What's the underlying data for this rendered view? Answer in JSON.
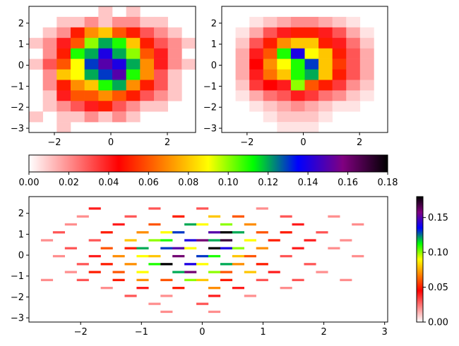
{
  "chart_data": [
    {
      "type": "heatmap",
      "panel": "top-left",
      "x_bins": 12,
      "y_bins": 12,
      "xlim": [
        -2.9,
        3.0
      ],
      "ylim": [
        -3.2,
        2.8
      ],
      "x_ticks": [
        "−2",
        "0",
        "2"
      ],
      "x_tick_values": [
        -2,
        0,
        2
      ],
      "y_ticks": [
        "−3",
        "−2",
        "−1",
        "0",
        "1",
        "2"
      ],
      "y_tick_values": [
        -3,
        -2,
        -1,
        0,
        1,
        2
      ],
      "note": "2D histogram density, gist_heat-like colormap shared with horizontal colorbar (0 to 0.18)",
      "values": [
        [
          0,
          0,
          0,
          0,
          0,
          0.01,
          0,
          0.01,
          0,
          0,
          0,
          0
        ],
        [
          0,
          0,
          0.01,
          0.01,
          0.02,
          0.01,
          0.02,
          0.02,
          0.01,
          0.01,
          0,
          0
        ],
        [
          0,
          0.01,
          0.02,
          0.05,
          0.07,
          0.08,
          0.06,
          0.05,
          0.03,
          0.02,
          0.01,
          0
        ],
        [
          0.01,
          0.02,
          0.04,
          0.06,
          0.1,
          0.12,
          0.11,
          0.08,
          0.05,
          0.03,
          0.02,
          0.01
        ],
        [
          0,
          0.02,
          0.05,
          0.11,
          0.12,
          0.14,
          0.12,
          0.1,
          0.06,
          0.04,
          0.02,
          0
        ],
        [
          0.01,
          0.03,
          0.06,
          0.09,
          0.13,
          0.15,
          0.14,
          0.12,
          0.07,
          0.04,
          0.02,
          0.01
        ],
        [
          0,
          0.02,
          0.08,
          0.09,
          0.12,
          0.13,
          0.15,
          0.11,
          0.07,
          0.03,
          0.01,
          0
        ],
        [
          0,
          0.02,
          0.05,
          0.07,
          0.08,
          0.11,
          0.12,
          0.07,
          0.05,
          0.03,
          0.01,
          0
        ],
        [
          0,
          0.01,
          0.04,
          0.06,
          0.06,
          0.07,
          0.06,
          0.05,
          0.03,
          0.02,
          0.01,
          0
        ],
        [
          0,
          0.01,
          0.02,
          0.03,
          0.04,
          0.05,
          0.03,
          0.02,
          0.01,
          0.01,
          0,
          0
        ],
        [
          0.01,
          0,
          0.01,
          0.01,
          0.02,
          0.01,
          0.02,
          0.01,
          0,
          0,
          0,
          0
        ],
        [
          0,
          0,
          0.01,
          0,
          0,
          0,
          0,
          0,
          0,
          0,
          0,
          0
        ]
      ]
    },
    {
      "type": "heatmap",
      "panel": "top-right",
      "x_bins": 12,
      "y_bins": 12,
      "xlim": [
        -2.9,
        3.0
      ],
      "ylim": [
        -3.2,
        2.8
      ],
      "x_ticks": [
        "−2",
        "0",
        "2"
      ],
      "x_tick_values": [
        -2,
        0,
        2
      ],
      "y_ticks": [
        "−3",
        "−2",
        "−1",
        "0",
        "1",
        "2"
      ],
      "y_tick_values": [
        -3,
        -2,
        -1,
        0,
        1,
        2
      ],
      "note": "Smoothed/interpolated 2D density, shared colormap (0 to 0.18)",
      "values": [
        [
          0,
          0,
          0,
          0,
          0,
          0,
          0,
          0,
          0,
          0,
          0,
          0
        ],
        [
          0,
          0,
          0.005,
          0.01,
          0.015,
          0.02,
          0.02,
          0.015,
          0.01,
          0.005,
          0,
          0
        ],
        [
          0,
          0.005,
          0.015,
          0.03,
          0.04,
          0.05,
          0.05,
          0.04,
          0.03,
          0.015,
          0.005,
          0
        ],
        [
          0,
          0.01,
          0.03,
          0.05,
          0.07,
          0.08,
          0.08,
          0.05,
          0.04,
          0.025,
          0.01,
          0
        ],
        [
          0,
          0.015,
          0.04,
          0.06,
          0.11,
          0.14,
          0.09,
          0.08,
          0.05,
          0.03,
          0.015,
          0
        ],
        [
          0,
          0.015,
          0.045,
          0.07,
          0.09,
          0.11,
          0.13,
          0.08,
          0.055,
          0.03,
          0.015,
          0
        ],
        [
          0,
          0.015,
          0.04,
          0.065,
          0.08,
          0.11,
          0.12,
          0.08,
          0.05,
          0.03,
          0.015,
          0
        ],
        [
          0,
          0.01,
          0.035,
          0.045,
          0.04,
          0.1,
          0.06,
          0.05,
          0.035,
          0.02,
          0.01,
          0
        ],
        [
          0,
          0.005,
          0.015,
          0.025,
          0.03,
          0.04,
          0.035,
          0.025,
          0.02,
          0.01,
          0.005,
          0
        ],
        [
          0,
          0,
          0.005,
          0.01,
          0.015,
          0.02,
          0.015,
          0.01,
          0.005,
          0.005,
          0,
          0
        ],
        [
          0,
          0,
          0,
          0.005,
          0.01,
          0.01,
          0.01,
          0.005,
          0,
          0,
          0,
          0
        ],
        [
          0,
          0,
          0,
          0,
          0.005,
          0.005,
          0.005,
          0,
          0,
          0,
          0,
          0
        ]
      ]
    },
    {
      "type": "colorbar",
      "panel": "horizontal-colorbar",
      "orientation": "horizontal",
      "range": [
        0,
        0.18
      ],
      "tick_labels": [
        "0.00",
        "0.02",
        "0.04",
        "0.06",
        "0.08",
        "0.10",
        "0.12",
        "0.14",
        "0.16",
        "0.18"
      ],
      "tick_values": [
        0,
        0.02,
        0.04,
        0.06,
        0.08,
        0.1,
        0.12,
        0.14,
        0.16,
        0.18
      ]
    },
    {
      "type": "heatmap",
      "panel": "bottom",
      "x_bins": 30,
      "y_bins": 30,
      "xlim": [
        -2.85,
        3.05
      ],
      "ylim": [
        -3.2,
        2.8
      ],
      "x_ticks": [
        "−2",
        "−1",
        "0",
        "1",
        "2",
        "3"
      ],
      "x_tick_values": [
        -2,
        -1,
        0,
        1,
        2,
        3
      ],
      "y_ticks": [
        "−3",
        "−2",
        "−1",
        "0",
        "1",
        "2"
      ],
      "y_tick_values": [
        -3,
        -2,
        -1,
        0,
        1,
        2
      ],
      "note": "Fine-binned 2D histogram (sparse), same data, shared colormap; approximate reconstruction",
      "cells": [
        [
          5,
          1,
          0.04
        ],
        [
          10,
          1,
          0.03
        ],
        [
          14,
          1,
          0.03
        ],
        [
          19,
          1,
          0.02
        ],
        [
          4,
          2,
          0.02
        ],
        [
          8,
          2,
          0.03
        ],
        [
          12,
          2,
          0.05
        ],
        [
          15,
          2,
          0.08
        ],
        [
          17,
          2,
          0.06
        ],
        [
          21,
          2,
          0.03
        ],
        [
          25,
          2,
          0.02
        ],
        [
          3,
          3,
          0.02
        ],
        [
          7,
          3,
          0.04
        ],
        [
          10,
          3,
          0.06
        ],
        [
          13,
          3,
          0.12
        ],
        [
          14,
          3,
          0.09
        ],
        [
          16,
          3,
          0.1
        ],
        [
          18,
          3,
          0.07
        ],
        [
          22,
          3,
          0.04
        ],
        [
          27,
          3,
          0.02
        ],
        [
          2,
          4,
          0.03
        ],
        [
          6,
          4,
          0.05
        ],
        [
          9,
          4,
          0.07
        ],
        [
          11,
          4,
          0.09
        ],
        [
          12,
          4,
          0.13
        ],
        [
          15,
          4,
          0.15
        ],
        [
          16,
          4,
          0.18
        ],
        [
          17,
          4,
          0.12
        ],
        [
          19,
          4,
          0.06
        ],
        [
          21,
          4,
          0.05
        ],
        [
          24,
          4,
          0.03
        ],
        [
          1,
          5,
          0.02
        ],
        [
          5,
          5,
          0.03
        ],
        [
          8,
          5,
          0.08
        ],
        [
          10,
          5,
          0.1
        ],
        [
          11,
          5,
          0.11
        ],
        [
          13,
          5,
          0.14
        ],
        [
          14,
          5,
          0.16
        ],
        [
          15,
          5,
          0.12
        ],
        [
          16,
          5,
          0.17
        ],
        [
          18,
          5,
          0.09
        ],
        [
          20,
          5,
          0.05
        ],
        [
          23,
          5,
          0.04
        ],
        [
          26,
          5,
          0.02
        ],
        [
          3,
          6,
          0.03
        ],
        [
          6,
          6,
          0.06
        ],
        [
          8,
          6,
          0.05
        ],
        [
          9,
          6,
          0.12
        ],
        [
          11,
          6,
          0.13
        ],
        [
          12,
          6,
          0.15
        ],
        [
          13,
          6,
          0.09
        ],
        [
          15,
          6,
          0.18
        ],
        [
          16,
          6,
          0.14
        ],
        [
          17,
          6,
          0.1
        ],
        [
          19,
          6,
          0.07
        ],
        [
          22,
          6,
          0.04
        ],
        [
          25,
          6,
          0.02
        ],
        [
          2,
          7,
          0.02
        ],
        [
          5,
          7,
          0.04
        ],
        [
          7,
          7,
          0.07
        ],
        [
          9,
          7,
          0.09
        ],
        [
          10,
          7,
          0.08
        ],
        [
          12,
          7,
          0.16
        ],
        [
          14,
          7,
          0.13
        ],
        [
          15,
          7,
          0.11
        ],
        [
          17,
          7,
          0.08
        ],
        [
          18,
          7,
          0.06
        ],
        [
          21,
          7,
          0.03
        ],
        [
          27,
          7,
          0.02
        ],
        [
          4,
          8,
          0.03
        ],
        [
          6,
          8,
          0.05
        ],
        [
          8,
          8,
          0.07
        ],
        [
          10,
          8,
          0.11
        ],
        [
          11,
          8,
          0.18
        ],
        [
          13,
          8,
          0.14
        ],
        [
          14,
          8,
          0.09
        ],
        [
          16,
          8,
          0.12
        ],
        [
          17,
          8,
          0.07
        ],
        [
          19,
          8,
          0.05
        ],
        [
          23,
          8,
          0.03
        ],
        [
          3,
          9,
          0.02
        ],
        [
          5,
          9,
          0.05
        ],
        [
          7,
          9,
          0.06
        ],
        [
          9,
          9,
          0.09
        ],
        [
          12,
          9,
          0.12
        ],
        [
          13,
          9,
          0.16
        ],
        [
          15,
          9,
          0.1
        ],
        [
          16,
          9,
          0.06
        ],
        [
          18,
          9,
          0.08
        ],
        [
          20,
          9,
          0.04
        ],
        [
          24,
          9,
          0.02
        ],
        [
          1,
          10,
          0.02
        ],
        [
          4,
          10,
          0.03
        ],
        [
          7,
          10,
          0.05
        ],
        [
          9,
          10,
          0.07
        ],
        [
          11,
          10,
          0.06
        ],
        [
          13,
          10,
          0.1
        ],
        [
          14,
          10,
          0.08
        ],
        [
          16,
          10,
          0.05
        ],
        [
          19,
          10,
          0.03
        ],
        [
          22,
          10,
          0.03
        ],
        [
          26,
          10,
          0.02
        ],
        [
          6,
          11,
          0.02
        ],
        [
          9,
          11,
          0.04
        ],
        [
          12,
          11,
          0.05
        ],
        [
          15,
          11,
          0.07
        ],
        [
          17,
          11,
          0.04
        ],
        [
          21,
          11,
          0.02
        ],
        [
          8,
          12,
          0.03
        ],
        [
          11,
          12,
          0.02
        ],
        [
          15,
          12,
          0.04
        ],
        [
          18,
          12,
          0.02
        ],
        [
          10,
          13,
          0.02
        ],
        [
          14,
          13,
          0.03
        ],
        [
          15,
          14,
          0.02
        ],
        [
          11,
          14,
          0.02
        ]
      ]
    },
    {
      "type": "colorbar",
      "panel": "vertical-colorbar",
      "orientation": "vertical",
      "range": [
        0,
        0.18
      ],
      "tick_labels": [
        "0.00",
        "0.05",
        "0.10",
        "0.15"
      ],
      "tick_values": [
        0,
        0.05,
        0.1,
        0.15
      ]
    }
  ]
}
